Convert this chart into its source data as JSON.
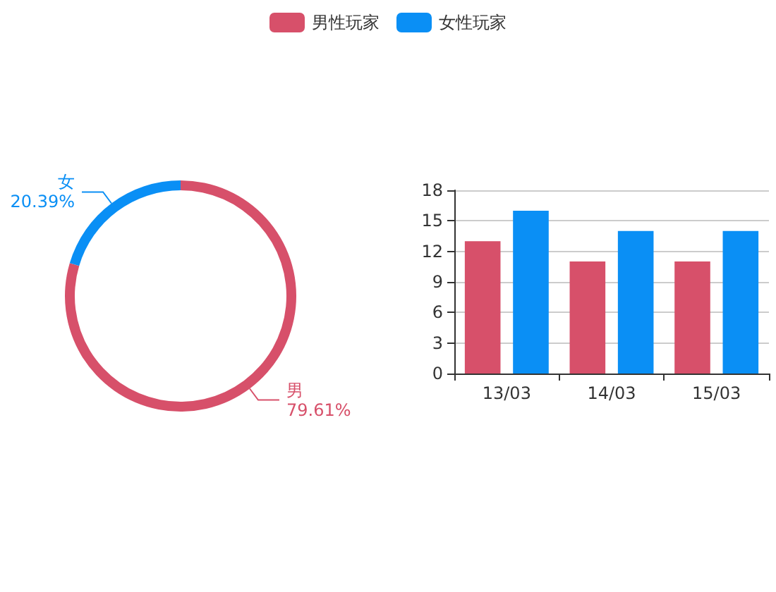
{
  "chart_data": [
    {
      "type": "donut",
      "categories": [
        "男",
        "女"
      ],
      "values": [
        79.61,
        20.39
      ],
      "value_labels": [
        "79.61%",
        "20.39%"
      ],
      "colors": [
        "#d7506a",
        "#0a8ff5"
      ],
      "legend": false
    },
    {
      "type": "bar",
      "categories": [
        "13/03",
        "14/03",
        "15/03"
      ],
      "series": [
        {
          "name": "男性玩家",
          "color": "#d7506a",
          "values": [
            13,
            11,
            11
          ]
        },
        {
          "name": "女性玩家",
          "color": "#0a8ff5",
          "values": [
            16,
            14,
            14
          ]
        }
      ],
      "ylim": [
        0,
        18
      ],
      "yticks": [
        0,
        3,
        6,
        9,
        12,
        15,
        18
      ],
      "grid": "y",
      "legend": "top"
    }
  ]
}
